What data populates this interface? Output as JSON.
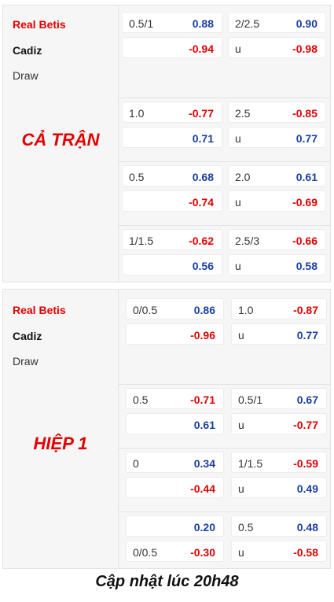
{
  "sections": [
    {
      "title": "CẢ TRẬN",
      "teams": {
        "home": "Real Betis",
        "away": "Cadiz",
        "draw": "Draw"
      },
      "groups": [
        {
          "handicap": {
            "top_label": "0.5/1",
            "top_val": "0.88",
            "bot_label": "",
            "bot_val": "-0.94"
          },
          "total": {
            "top_label": "2/2.5",
            "top_val": "0.90",
            "bot_label": "u",
            "bot_val": "-0.98"
          }
        },
        {
          "handicap": {
            "top_label": "1.0",
            "top_val": "-0.77",
            "bot_label": "",
            "bot_val": "0.71"
          },
          "total": {
            "top_label": "2.5",
            "top_val": "-0.85",
            "bot_label": "u",
            "bot_val": "0.77"
          }
        },
        {
          "handicap": {
            "top_label": "0.5",
            "top_val": "0.68",
            "bot_label": "",
            "bot_val": "-0.74"
          },
          "total": {
            "top_label": "2.0",
            "top_val": "0.61",
            "bot_label": "u",
            "bot_val": "-0.69"
          }
        },
        {
          "handicap": {
            "top_label": "1/1.5",
            "top_val": "-0.62",
            "bot_label": "",
            "bot_val": "0.56"
          },
          "total": {
            "top_label": "2.5/3",
            "top_val": "-0.66",
            "bot_label": "u",
            "bot_val": "0.58"
          }
        }
      ]
    },
    {
      "title": "HIỆP 1",
      "teams": {
        "home": "Real Betis",
        "away": "Cadiz",
        "draw": "Draw"
      },
      "groups": [
        {
          "handicap": {
            "top_label": "0/0.5",
            "top_val": "0.86",
            "bot_label": "",
            "bot_val": "-0.96"
          },
          "total": {
            "top_label": "1.0",
            "top_val": "-0.87",
            "bot_label": "u",
            "bot_val": "0.77"
          }
        },
        {
          "handicap": {
            "top_label": "0.5",
            "top_val": "-0.71",
            "bot_label": "",
            "bot_val": "0.61"
          },
          "total": {
            "top_label": "0.5/1",
            "top_val": "0.67",
            "bot_label": "u",
            "bot_val": "-0.77"
          }
        },
        {
          "handicap": {
            "top_label": "0",
            "top_val": "0.34",
            "bot_label": "",
            "bot_val": "-0.44"
          },
          "total": {
            "top_label": "1/1.5",
            "top_val": "-0.59",
            "bot_label": "u",
            "bot_val": "0.49"
          }
        },
        {
          "handicap": {
            "top_label": "",
            "top_val": "0.20",
            "bot_label": "0/0.5",
            "bot_val": "-0.30"
          },
          "total": {
            "top_label": "0.5",
            "top_val": "0.48",
            "bot_label": "u",
            "bot_val": "-0.58"
          }
        }
      ]
    }
  ],
  "footer": "Cập nhật lúc 20h48",
  "colors": {
    "positive": "#1a3fa0",
    "negative": "#e30000",
    "title": "#e30000"
  }
}
